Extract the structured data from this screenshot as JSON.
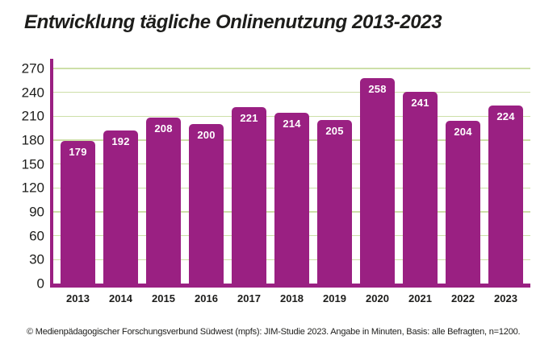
{
  "chart_data": {
    "type": "bar",
    "title": "Entwicklung tägliche Onlinenutzung 2013-2023",
    "categories": [
      "2013",
      "2014",
      "2015",
      "2016",
      "2017",
      "2018",
      "2019",
      "2020",
      "2021",
      "2022",
      "2023"
    ],
    "values": [
      179,
      192,
      208,
      200,
      221,
      214,
      205,
      258,
      241,
      204,
      224
    ],
    "xlabel": "",
    "ylabel": "",
    "ylim": [
      0,
      270
    ],
    "y_ticks": [
      0,
      30,
      60,
      90,
      120,
      150,
      180,
      210,
      240,
      270
    ],
    "grid": true,
    "legend": "none",
    "value_labels_position": "inside-top"
  },
  "footer": {
    "text": "© Medienpädagogischer Forschungsverbund Südwest (mpfs): JIM-Studie 2023. Angabe in Minuten, Basis: alle Befragten, n=1200."
  },
  "colors": {
    "bar": "#9a2082",
    "axis": "#9a2082",
    "gridline": "#cddfa8",
    "title_text": "#1d1d1b",
    "tick_text": "#1d1d1b",
    "value_label_text": "#ffffff",
    "footer_text": "#1d1d1b",
    "background": "#ffffff"
  }
}
